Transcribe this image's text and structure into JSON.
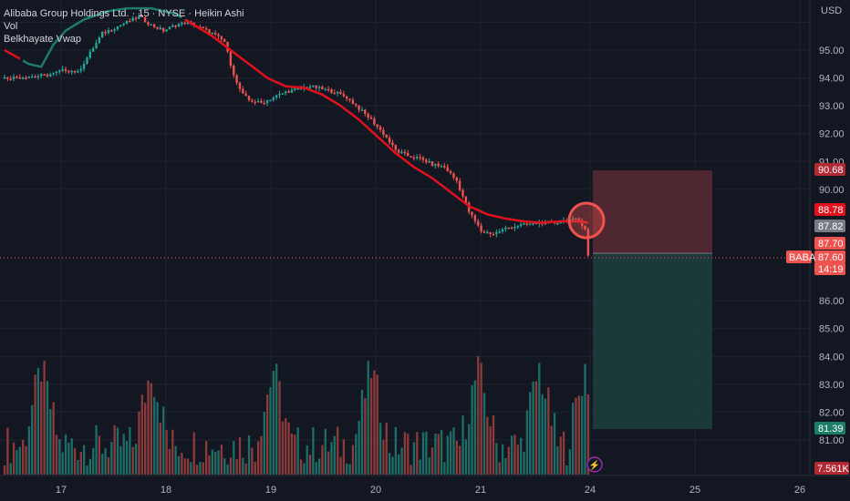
{
  "legend": {
    "title": "Alibaba Group Holdings Ltd. · 15 · NYSE · Heikin Ashi",
    "vol": "Vol",
    "vwap": "Belkhayate Vwap"
  },
  "currency": "USD",
  "colors": {
    "background": "#131722",
    "grid": "#1f2330",
    "bull": "#26a69a",
    "bear": "#ef5350",
    "vwap": "#e0111d",
    "vwap_low": "#1e7a6b",
    "risk_zone": "#5a2a33",
    "reward_zone": "#1d3d3c",
    "price_line": "#ef5350",
    "text": "#b2b5be"
  },
  "chart_data": {
    "type": "candlestick",
    "style": "Heikin Ashi",
    "symbol": "BABA",
    "exchange": "NYSE",
    "interval": "15",
    "x_ticks": [
      "17",
      "18",
      "19",
      "20",
      "21",
      "24",
      "25",
      "26"
    ],
    "y_ticks": [
      "95.00",
      "94.00",
      "93.00",
      "92.00",
      "91.00",
      "90.00",
      "86.00",
      "85.00",
      "84.00",
      "83.00",
      "82.00",
      "81.00"
    ],
    "ylim": [
      80.5,
      96.2
    ],
    "price_path": [
      [
        0,
        94.0
      ],
      [
        8,
        94.05
      ],
      [
        14,
        94.1
      ],
      [
        20,
        94.3
      ],
      [
        24,
        94.2
      ],
      [
        28,
        94.9
      ],
      [
        32,
        95.6
      ],
      [
        36,
        95.8
      ],
      [
        40,
        96.0
      ],
      [
        44,
        96.2
      ],
      [
        48,
        95.9
      ],
      [
        52,
        95.7
      ],
      [
        56,
        95.9
      ],
      [
        60,
        96.0
      ],
      [
        64,
        95.8
      ],
      [
        68,
        95.6
      ],
      [
        72,
        95.3
      ],
      [
        74,
        94.5
      ],
      [
        76,
        93.8
      ],
      [
        78,
        93.4
      ],
      [
        80,
        93.2
      ],
      [
        84,
        93.1
      ],
      [
        88,
        93.3
      ],
      [
        92,
        93.5
      ],
      [
        96,
        93.6
      ],
      [
        100,
        93.7
      ],
      [
        104,
        93.6
      ],
      [
        108,
        93.5
      ],
      [
        112,
        93.3
      ],
      [
        116,
        92.9
      ],
      [
        120,
        92.5
      ],
      [
        124,
        92.0
      ],
      [
        128,
        91.4
      ],
      [
        132,
        91.2
      ],
      [
        136,
        91.1
      ],
      [
        140,
        90.9
      ],
      [
        144,
        90.8
      ],
      [
        148,
        90.3
      ],
      [
        152,
        89.2
      ],
      [
        156,
        88.5
      ],
      [
        160,
        88.4
      ],
      [
        164,
        88.6
      ],
      [
        168,
        88.7
      ],
      [
        172,
        88.75
      ],
      [
        176,
        88.8
      ],
      [
        180,
        88.8
      ],
      [
        184,
        88.9
      ],
      [
        188,
        88.9
      ],
      [
        190,
        88.6
      ],
      [
        191,
        87.6
      ]
    ],
    "vwap_path": [
      [
        0,
        95.0
      ],
      [
        8,
        94.5
      ],
      [
        12,
        94.4
      ],
      [
        16,
        95.2
      ],
      [
        20,
        95.7
      ],
      [
        26,
        96.1
      ],
      [
        34,
        96.4
      ],
      [
        40,
        96.5
      ],
      [
        48,
        96.5
      ],
      [
        56,
        96.3
      ],
      [
        62,
        95.9
      ],
      [
        68,
        95.5
      ],
      [
        74,
        95.0
      ],
      [
        80,
        94.5
      ],
      [
        86,
        94.0
      ],
      [
        92,
        93.7
      ],
      [
        98,
        93.65
      ],
      [
        104,
        93.4
      ],
      [
        110,
        93.0
      ],
      [
        116,
        92.5
      ],
      [
        122,
        91.9
      ],
      [
        128,
        91.3
      ],
      [
        134,
        90.8
      ],
      [
        140,
        90.4
      ],
      [
        146,
        89.9
      ],
      [
        152,
        89.4
      ],
      [
        158,
        89.1
      ],
      [
        164,
        88.95
      ],
      [
        170,
        88.85
      ],
      [
        176,
        88.8
      ],
      [
        182,
        88.85
      ],
      [
        188,
        88.85
      ],
      [
        191,
        88.8
      ]
    ],
    "volume_peaks": [
      12,
      48,
      88,
      120,
      155,
      175,
      190
    ],
    "position": {
      "stop": "90.68",
      "entry": "87.70",
      "target": "81.39"
    },
    "price_tags": [
      {
        "label": "88.78",
        "price": 88.78,
        "color": "#e0111d"
      },
      {
        "label": "87.82",
        "price": 88.3,
        "color": "#787b86"
      },
      {
        "label": "87.70",
        "price": 87.7,
        "color": "#ef5350"
      },
      {
        "label": "87.60",
        "price": 87.3,
        "color": "#ef5350"
      },
      {
        "label": "14:19",
        "price": 86.9,
        "color": "#ef5350"
      }
    ],
    "symbol_tag": "BABA",
    "volume_tag": "7.561K"
  }
}
